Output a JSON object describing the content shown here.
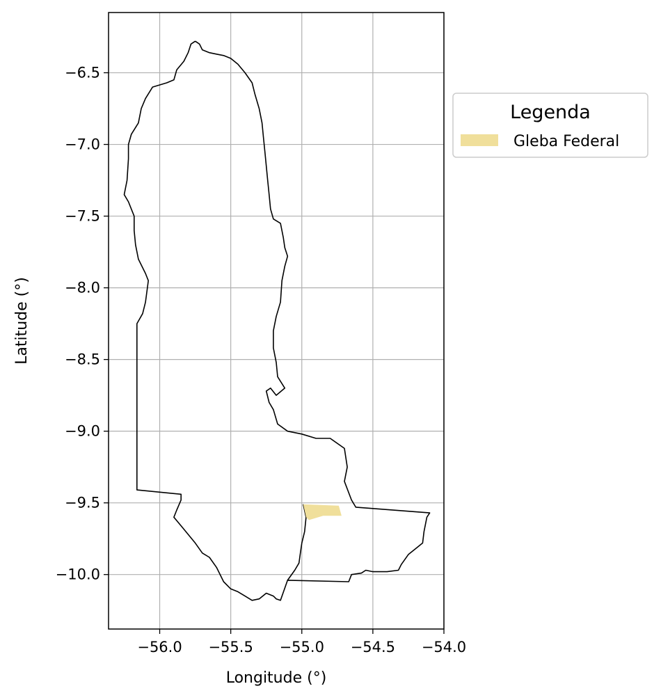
{
  "chart_data": {
    "type": "map",
    "xlabel": "Longitude (°)",
    "ylabel": "Latitude (°)",
    "xlim": [
      -56.36,
      -54.0
    ],
    "ylim": [
      -10.38,
      -6.08
    ],
    "x_ticks": [
      -56.0,
      -55.5,
      -55.0,
      -54.5,
      -54.0
    ],
    "x_tick_labels": [
      "−56.0",
      "−55.5",
      "−55.0",
      "−54.5",
      "−54.0"
    ],
    "y_ticks": [
      -6.5,
      -7.0,
      -7.5,
      -8.0,
      -8.5,
      -9.0,
      -9.5,
      -10.0
    ],
    "y_tick_labels": [
      "−6.5",
      "−7.0",
      "−7.5",
      "−8.0",
      "−8.5",
      "−9.0",
      "−9.5",
      "−10.0"
    ],
    "grid": true,
    "legend": {
      "title": "Legenda",
      "placement": "outside-right-top",
      "entries": [
        {
          "label": "Gleba Federal",
          "color": "#f0df9b"
        }
      ]
    },
    "layers": [
      {
        "name": "Municipality boundary",
        "style": {
          "fill": "none",
          "stroke": "#000000"
        },
        "coordinates": [
          [
            -55.75,
            -6.28
          ],
          [
            -55.72,
            -6.3
          ],
          [
            -55.7,
            -6.34
          ],
          [
            -55.65,
            -6.36
          ],
          [
            -55.6,
            -6.37
          ],
          [
            -55.55,
            -6.38
          ],
          [
            -55.5,
            -6.4
          ],
          [
            -55.45,
            -6.44
          ],
          [
            -55.4,
            -6.5
          ],
          [
            -55.35,
            -6.57
          ],
          [
            -55.33,
            -6.65
          ],
          [
            -55.3,
            -6.75
          ],
          [
            -55.28,
            -6.85
          ],
          [
            -55.27,
            -6.95
          ],
          [
            -55.26,
            -7.05
          ],
          [
            -55.25,
            -7.15
          ],
          [
            -55.24,
            -7.25
          ],
          [
            -55.23,
            -7.35
          ],
          [
            -55.22,
            -7.45
          ],
          [
            -55.2,
            -7.52
          ],
          [
            -55.15,
            -7.55
          ],
          [
            -55.13,
            -7.65
          ],
          [
            -55.12,
            -7.72
          ],
          [
            -55.1,
            -7.78
          ],
          [
            -55.12,
            -7.85
          ],
          [
            -55.14,
            -7.95
          ],
          [
            -55.15,
            -8.1
          ],
          [
            -55.18,
            -8.2
          ],
          [
            -55.2,
            -8.3
          ],
          [
            -55.2,
            -8.42
          ],
          [
            -55.18,
            -8.52
          ],
          [
            -55.17,
            -8.62
          ],
          [
            -55.12,
            -8.7
          ],
          [
            -55.18,
            -8.75
          ],
          [
            -55.22,
            -8.7
          ],
          [
            -55.25,
            -8.72
          ],
          [
            -55.23,
            -8.8
          ],
          [
            -55.2,
            -8.85
          ],
          [
            -55.17,
            -8.95
          ],
          [
            -55.1,
            -9.0
          ],
          [
            -55.0,
            -9.02
          ],
          [
            -54.9,
            -9.05
          ],
          [
            -54.8,
            -9.05
          ],
          [
            -54.7,
            -9.12
          ],
          [
            -54.68,
            -9.25
          ],
          [
            -54.7,
            -9.35
          ],
          [
            -54.65,
            -9.48
          ],
          [
            -54.62,
            -9.53
          ],
          [
            -54.1,
            -9.57
          ],
          [
            -54.12,
            -9.6
          ],
          [
            -54.14,
            -9.7
          ],
          [
            -54.15,
            -9.78
          ],
          [
            -54.2,
            -9.82
          ],
          [
            -54.25,
            -9.86
          ],
          [
            -54.3,
            -9.93
          ],
          [
            -54.32,
            -9.97
          ],
          [
            -54.4,
            -9.98
          ],
          [
            -54.5,
            -9.98
          ],
          [
            -54.55,
            -9.97
          ],
          [
            -54.58,
            -9.99
          ],
          [
            -54.65,
            -10.0
          ],
          [
            -54.67,
            -10.05
          ],
          [
            -55.1,
            -10.04
          ],
          [
            -55.15,
            -10.18
          ],
          [
            -55.18,
            -10.17
          ],
          [
            -55.2,
            -10.15
          ],
          [
            -55.25,
            -10.13
          ],
          [
            -55.3,
            -10.17
          ],
          [
            -55.35,
            -10.18
          ],
          [
            -55.4,
            -10.15
          ],
          [
            -55.45,
            -10.12
          ],
          [
            -55.5,
            -10.1
          ],
          [
            -55.55,
            -10.05
          ],
          [
            -55.6,
            -9.95
          ],
          [
            -55.65,
            -9.88
          ],
          [
            -55.7,
            -9.85
          ],
          [
            -55.75,
            -9.78
          ],
          [
            -55.8,
            -9.72
          ],
          [
            -55.85,
            -9.66
          ],
          [
            -55.9,
            -9.6
          ],
          [
            -55.88,
            -9.55
          ],
          [
            -55.85,
            -9.48
          ],
          [
            -55.85,
            -9.44
          ],
          [
            -56.16,
            -9.41
          ],
          [
            -56.16,
            -8.25
          ],
          [
            -56.12,
            -8.18
          ],
          [
            -56.1,
            -8.1
          ],
          [
            -56.08,
            -7.95
          ],
          [
            -56.1,
            -7.9
          ],
          [
            -56.15,
            -7.8
          ],
          [
            -56.17,
            -7.7
          ],
          [
            -56.18,
            -7.6
          ],
          [
            -56.18,
            -7.5
          ],
          [
            -56.2,
            -7.45
          ],
          [
            -56.22,
            -7.4
          ],
          [
            -56.25,
            -7.35
          ],
          [
            -56.23,
            -7.25
          ],
          [
            -56.22,
            -7.1
          ],
          [
            -56.22,
            -7.0
          ],
          [
            -56.2,
            -6.93
          ],
          [
            -56.15,
            -6.85
          ],
          [
            -56.13,
            -6.75
          ],
          [
            -56.1,
            -6.68
          ],
          [
            -56.05,
            -6.6
          ],
          [
            -55.95,
            -6.57
          ],
          [
            -55.9,
            -6.55
          ],
          [
            -55.88,
            -6.48
          ],
          [
            -55.83,
            -6.42
          ],
          [
            -55.8,
            -6.36
          ],
          [
            -55.78,
            -6.3
          ],
          [
            -55.75,
            -6.28
          ]
        ]
      },
      {
        "name": "Inner boundary line",
        "style": {
          "fill": "none",
          "stroke": "#000000"
        },
        "coordinates": [
          [
            -54.99,
            -9.51
          ],
          [
            -54.97,
            -9.6
          ],
          [
            -54.98,
            -9.7
          ],
          [
            -55.0,
            -9.78
          ],
          [
            -55.01,
            -9.85
          ],
          [
            -55.02,
            -9.92
          ],
          [
            -55.05,
            -9.97
          ],
          [
            -55.1,
            -10.04
          ]
        ]
      },
      {
        "name": "Gleba Federal",
        "style": {
          "fill": "#f0df9b",
          "stroke": "none"
        },
        "coordinates": [
          [
            -54.99,
            -9.51
          ],
          [
            -54.74,
            -9.52
          ],
          [
            -54.72,
            -9.59
          ],
          [
            -54.85,
            -9.59
          ],
          [
            -54.95,
            -9.62
          ],
          [
            -54.97,
            -9.6
          ]
        ]
      }
    ]
  }
}
